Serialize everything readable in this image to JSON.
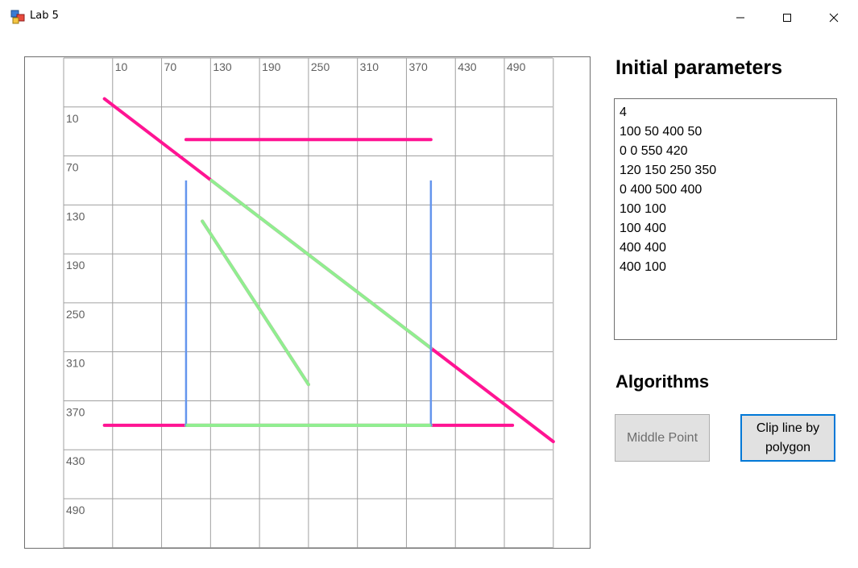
{
  "window": {
    "title": "Lab 5",
    "controls": {
      "minimize": "minimize",
      "maximize": "maximize",
      "close": "close"
    }
  },
  "plot": {
    "x_ticks": [
      "10",
      "70",
      "130",
      "190",
      "250",
      "310",
      "370",
      "430",
      "490"
    ],
    "y_ticks": [
      "10",
      "70",
      "130",
      "190",
      "250",
      "310",
      "370",
      "430",
      "490"
    ],
    "colors": {
      "grid": "#a0a0a0",
      "segment": "#ff1493",
      "clipped": "#90ee90",
      "polygon": "#6495ed"
    },
    "segments": [
      {
        "x1": 100,
        "y1": 50,
        "x2": 400,
        "y2": 50
      },
      {
        "x1": 0,
        "y1": 0,
        "x2": 550,
        "y2": 420
      },
      {
        "x1": 120,
        "y1": 150,
        "x2": 250,
        "y2": 350
      },
      {
        "x1": 0,
        "y1": 400,
        "x2": 500,
        "y2": 400
      }
    ],
    "clipped_segments": [
      {
        "x1": 130.95,
        "y1": 100,
        "x2": 400,
        "y2": 305.45
      },
      {
        "x1": 120,
        "y1": 150,
        "x2": 250,
        "y2": 350
      },
      {
        "x1": 100,
        "y1": 400,
        "x2": 400,
        "y2": 400
      }
    ],
    "polygon": [
      [
        100,
        100
      ],
      [
        100,
        400
      ],
      [
        400,
        400
      ],
      [
        400,
        100
      ]
    ]
  },
  "initial_parameters": {
    "heading": "Initial parameters",
    "lines": [
      "4",
      "100 50 400 50",
      "0 0 550 420",
      "120 150 250 350",
      "0 400 500 400",
      "100 100",
      "100 400",
      "400 400",
      "400 100"
    ]
  },
  "algorithms": {
    "heading": "Algorithms",
    "middle_point_label": "Middle Point",
    "clip_label": "Clip line by polygon"
  }
}
